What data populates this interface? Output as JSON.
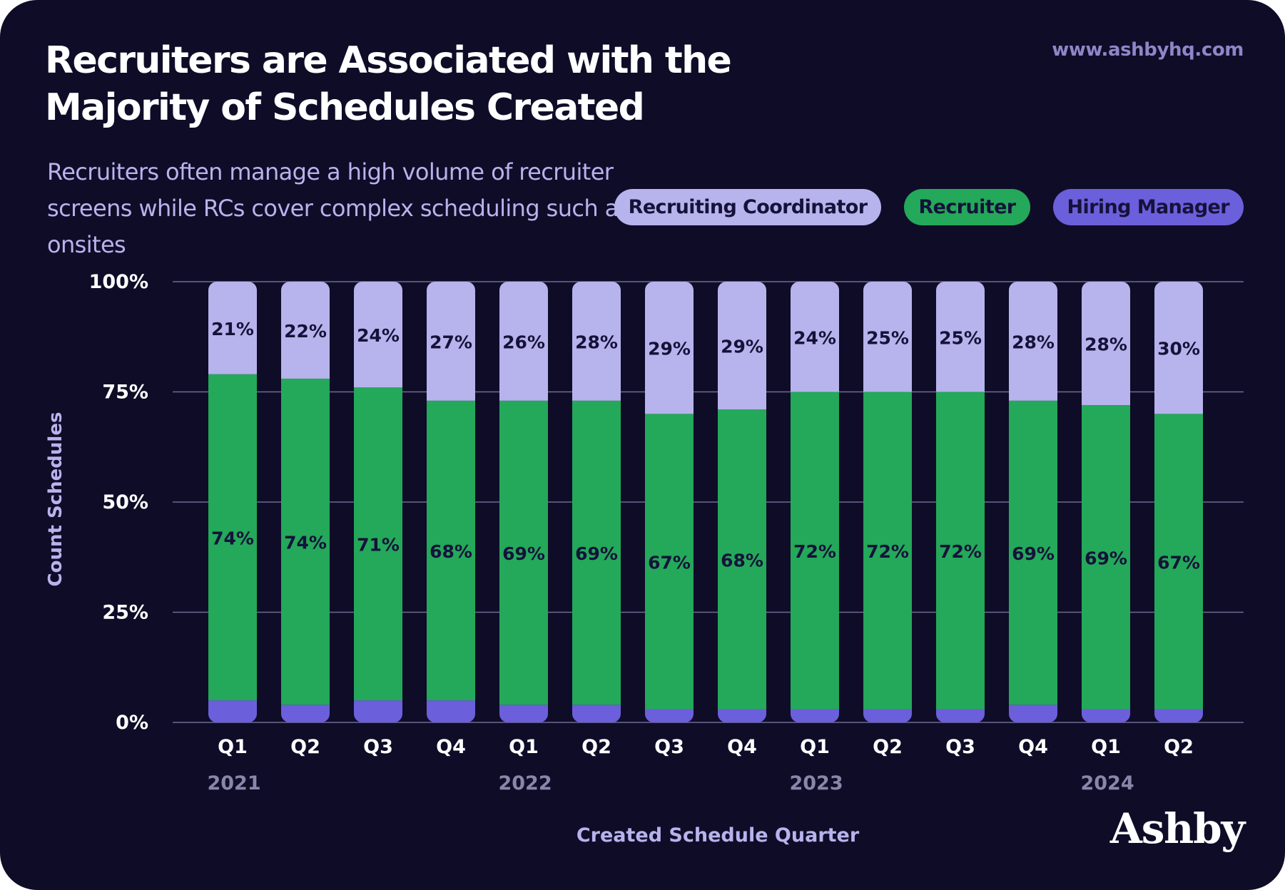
{
  "header": {
    "title": "Recruiters are Associated with the Majority of Schedules Created",
    "subtitle": "Recruiters often manage a high volume of recruiter screens while RCs cover  complex scheduling such as onsites",
    "source": "www.ashbyhq.com",
    "brand": "Ashby"
  },
  "legend": [
    {
      "label": "Recruiting Coordinator",
      "color": "#b7b3ec"
    },
    {
      "label": "Recruiter",
      "color": "#24a85a"
    },
    {
      "label": "Hiring Manager",
      "color": "#6c5fdb"
    }
  ],
  "colors": {
    "background": "#0f0c28",
    "grid": "#6e6a92",
    "axis_text": "#ffffff",
    "year_text": "#8a86aa",
    "axis_title": "#b7b3ec",
    "label_text": "#15123a"
  },
  "chart_data": {
    "type": "bar",
    "stacked": true,
    "normalized": true,
    "xlabel": "Created Schedule Quarter",
    "ylabel": "Count Schedules",
    "ylim": [
      0,
      100
    ],
    "y_ticks": [
      "0%",
      "25%",
      "50%",
      "75%",
      "100%"
    ],
    "categories": [
      "Q1",
      "Q2",
      "Q3",
      "Q4",
      "Q1",
      "Q2",
      "Q3",
      "Q4",
      "Q1",
      "Q2",
      "Q3",
      "Q4",
      "Q1",
      "Q2"
    ],
    "year_groups": [
      {
        "label": "2021",
        "quarters": 4
      },
      {
        "label": "2022",
        "quarters": 4
      },
      {
        "label": "2023",
        "quarters": 4
      },
      {
        "label": "2024",
        "quarters": 2
      }
    ],
    "series": [
      {
        "name": "Hiring Manager",
        "color": "#6c5fdb",
        "values": [
          5,
          4,
          5,
          5,
          4,
          4,
          3,
          3,
          3,
          3,
          3,
          4,
          3,
          3
        ],
        "labels": [
          "",
          "",
          "",
          "",
          "",
          "",
          "",
          "",
          "",
          "",
          "",
          "",
          "",
          ""
        ]
      },
      {
        "name": "Recruiter",
        "color": "#24a85a",
        "values": [
          74,
          74,
          71,
          68,
          69,
          69,
          67,
          68,
          72,
          72,
          72,
          69,
          69,
          67
        ],
        "labels": [
          "74%",
          "74%",
          "71%",
          "68%",
          "69%",
          "69%",
          "67%",
          "68%",
          "72%",
          "72%",
          "72%",
          "69%",
          "69%",
          "67%"
        ]
      },
      {
        "name": "Recruiting Coordinator",
        "color": "#b7b3ec",
        "values": [
          21,
          22,
          24,
          27,
          26,
          28,
          29,
          29,
          24,
          25,
          25,
          28,
          28,
          30
        ],
        "labels": [
          "21%",
          "22%",
          "24%",
          "27%",
          "26%",
          "28%",
          "29%",
          "29%",
          "24%",
          "25%",
          "25%",
          "28%",
          "28%",
          "30%"
        ]
      }
    ]
  }
}
